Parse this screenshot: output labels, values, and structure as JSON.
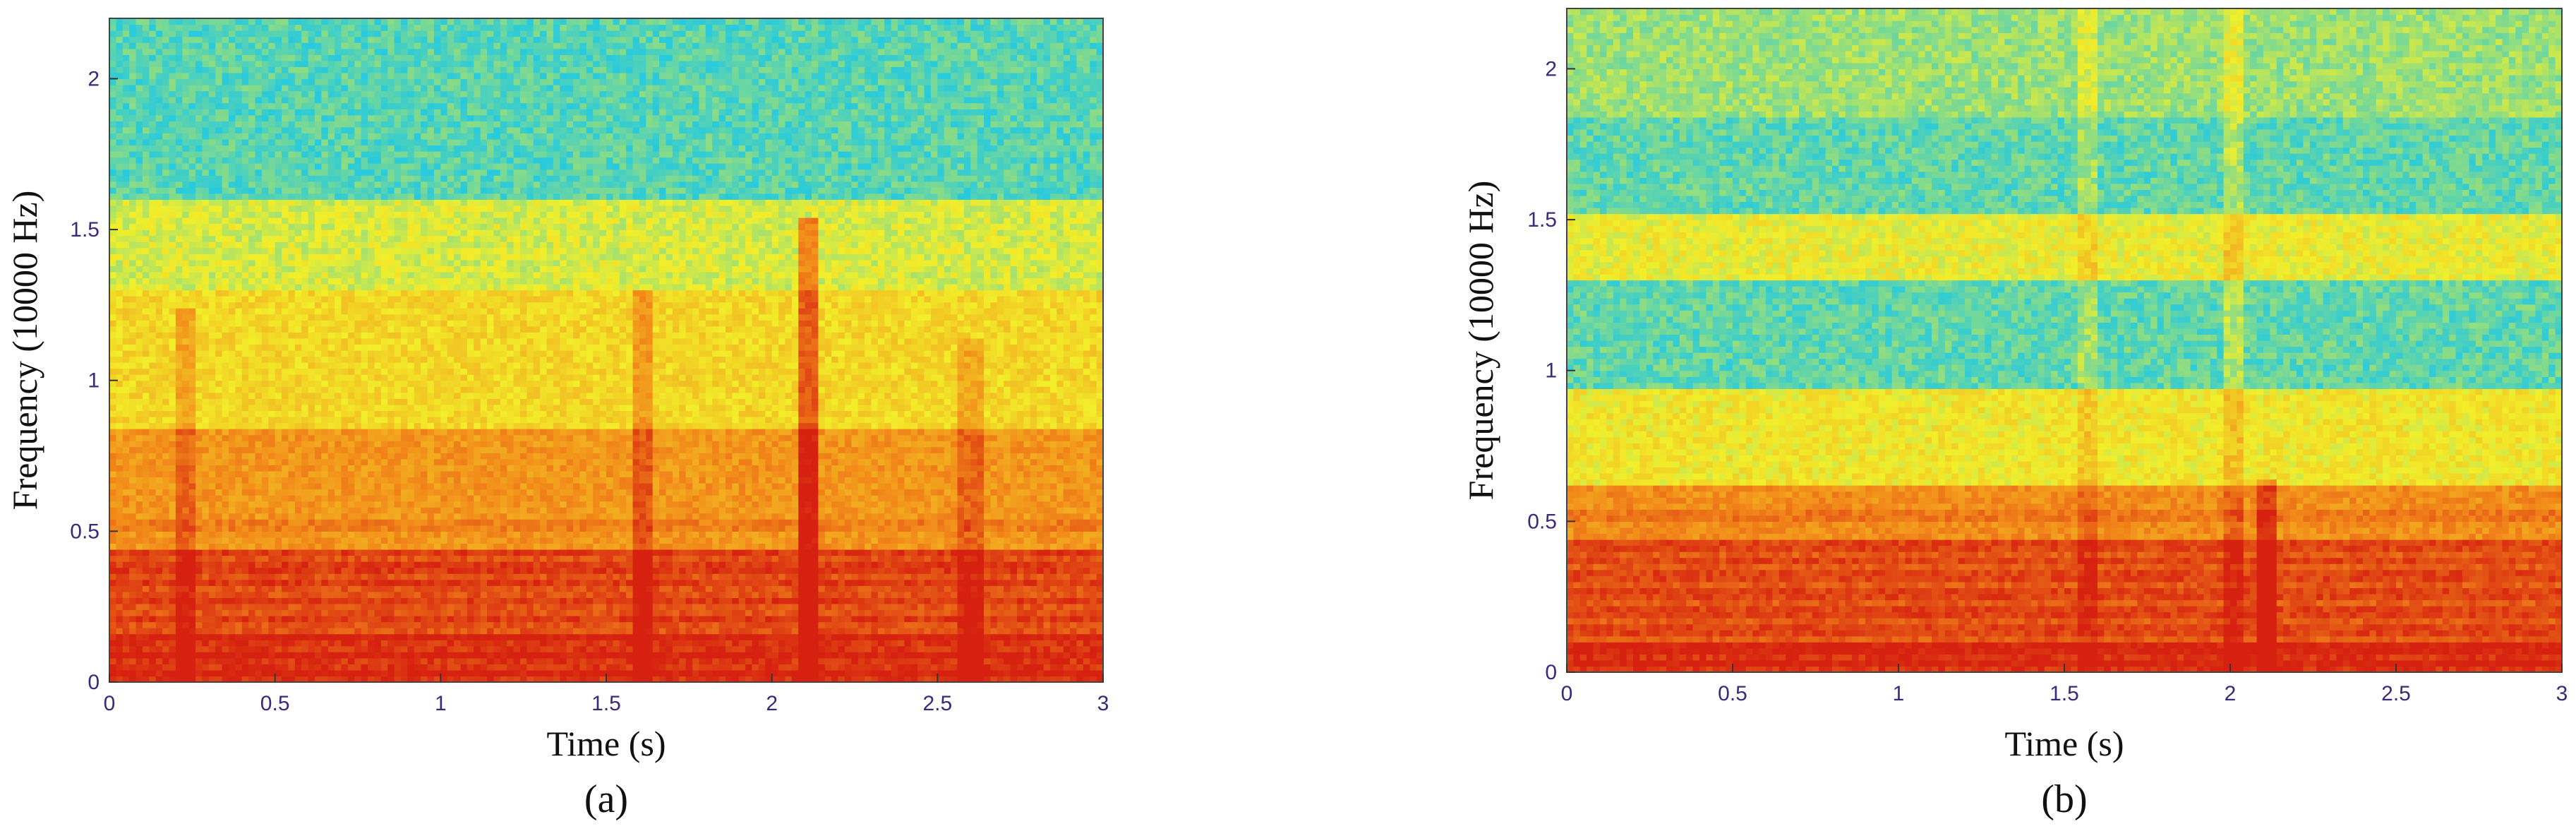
{
  "chart_data": [
    {
      "type": "heatmap",
      "caption": "(a)",
      "xlabel": "Time (s)",
      "ylabel": "Frequency  (10000 Hz)",
      "xlim": [
        0,
        3
      ],
      "ylim": [
        0,
        2.2
      ],
      "x_ticks": [
        "0",
        "0.5",
        "1",
        "1.5",
        "2",
        "2.5",
        "3"
      ],
      "y_ticks": [
        "0",
        "0.5",
        "1",
        "1.5",
        "2"
      ],
      "colormap": [
        "#0a3aa8",
        "#1ec8e6",
        "#f2ef2a",
        "#f28a1a",
        "#d62010"
      ],
      "bands": [
        {
          "from": 0.0,
          "to": 0.15,
          "level": 0.95
        },
        {
          "from": 0.15,
          "to": 0.45,
          "level": 0.88
        },
        {
          "from": 0.45,
          "to": 0.85,
          "level": 0.72
        },
        {
          "from": 0.85,
          "to": 1.3,
          "level": 0.56
        },
        {
          "from": 1.3,
          "to": 1.6,
          "level": 0.47
        },
        {
          "from": 1.6,
          "to": 2.2,
          "level": 0.32
        }
      ],
      "vertical_events": [
        {
          "t": 0.23,
          "fmax": 1.25,
          "strength": 0.12
        },
        {
          "t": 1.6,
          "fmax": 1.3,
          "strength": 0.15
        },
        {
          "t": 2.1,
          "fmax": 1.55,
          "strength": 0.3
        },
        {
          "t": 2.6,
          "fmax": 1.15,
          "strength": 0.12
        }
      ],
      "harmonic_lines": [
        0.03,
        0.09,
        0.15,
        0.21,
        0.27,
        0.33,
        0.38,
        0.43,
        0.52
      ]
    },
    {
      "type": "heatmap",
      "caption": "(b)",
      "xlabel": "Time (s)",
      "ylabel": "Frequency  (10000 Hz)",
      "xlim": [
        0,
        3
      ],
      "ylim": [
        0,
        2.2
      ],
      "x_ticks": [
        "0",
        "0.5",
        "1",
        "1.5",
        "2",
        "2.5",
        "3"
      ],
      "y_ticks": [
        "0",
        "0.5",
        "1",
        "1.5",
        "2"
      ],
      "colormap": [
        "#0a3aa8",
        "#1ec8e6",
        "#f2ef2a",
        "#f28a1a",
        "#d62010"
      ],
      "bands": [
        {
          "from": 0.0,
          "to": 0.1,
          "level": 0.95
        },
        {
          "from": 0.1,
          "to": 0.45,
          "level": 0.86
        },
        {
          "from": 0.45,
          "to": 0.62,
          "level": 0.74
        },
        {
          "from": 0.62,
          "to": 0.95,
          "level": 0.52
        },
        {
          "from": 0.95,
          "to": 1.3,
          "level": 0.33
        },
        {
          "from": 1.3,
          "to": 1.52,
          "level": 0.5
        },
        {
          "from": 1.52,
          "to": 1.85,
          "level": 0.33
        },
        {
          "from": 1.85,
          "to": 2.2,
          "level": 0.4
        }
      ],
      "vertical_events": [
        {
          "t": 1.57,
          "fmax": 2.2,
          "strength": 0.08
        },
        {
          "t": 2.0,
          "fmax": 2.2,
          "strength": 0.1
        },
        {
          "t": 2.1,
          "fmax": 0.65,
          "strength": 0.2
        }
      ],
      "harmonic_lines": [
        0.03,
        0.08,
        0.14,
        0.2,
        0.26,
        0.32,
        0.37,
        0.42,
        0.52
      ]
    }
  ]
}
